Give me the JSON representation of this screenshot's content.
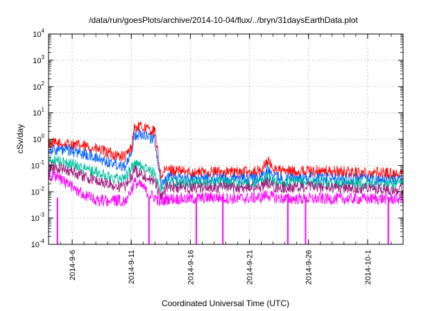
{
  "chart_data": {
    "type": "line",
    "title": "/data/run/goesPlots/archive/2014-10-04/flux/../bryn/31daysEarthData.plot",
    "xlabel": "Coordinated Universal Time (UTC)",
    "ylabel": "cSv/day",
    "x_start": "2014-09-04",
    "x_end": "2014-10-04",
    "y_scale": "log",
    "ylim": [
      0.0001,
      10000
    ],
    "y_ticks": [
      {
        "base": "10",
        "exp": "-4"
      },
      {
        "base": "10",
        "exp": "-3"
      },
      {
        "base": "10",
        "exp": "-2"
      },
      {
        "base": "10",
        "exp": "-1"
      },
      {
        "base": "10",
        "exp": "0"
      },
      {
        "base": "10",
        "exp": "1"
      },
      {
        "base": "10",
        "exp": "2"
      },
      {
        "base": "10",
        "exp": "3"
      },
      {
        "base": "10",
        "exp": "4"
      }
    ],
    "x_ticks": [
      {
        "date": "2014-09-06",
        "label": "2014-9-6"
      },
      {
        "date": "2014-09-11",
        "label": "2014-9-11"
      },
      {
        "date": "2014-09-16",
        "label": "2014-9-16"
      },
      {
        "date": "2014-09-21",
        "label": "2014-9-21"
      },
      {
        "date": "2014-09-26",
        "label": "2014-9-26"
      },
      {
        "date": "2014-10-01",
        "label": "2014-10-1"
      }
    ],
    "grid": true,
    "series": [
      {
        "color": "#ff0000",
        "points": [
          [
            "2014-09-04",
            0.9
          ],
          [
            "2014-09-05",
            0.85
          ],
          [
            "2014-09-06",
            0.8
          ],
          [
            "2014-09-07",
            0.7
          ],
          [
            "2014-09-08",
            0.55
          ],
          [
            "2014-09-09",
            0.4
          ],
          [
            "2014-09-10",
            0.3
          ],
          [
            "2014-09-10T12",
            0.28
          ],
          [
            "2014-09-11",
            0.6
          ],
          [
            "2014-09-11T06",
            3.5
          ],
          [
            "2014-09-12",
            3.8
          ],
          [
            "2014-09-12T12",
            3.0
          ],
          [
            "2014-09-13",
            2.5
          ],
          [
            "2014-09-13T12",
            0.05
          ],
          [
            "2014-09-14",
            0.09
          ],
          [
            "2014-09-16",
            0.07
          ],
          [
            "2014-09-18",
            0.075
          ],
          [
            "2014-09-20",
            0.07
          ],
          [
            "2014-09-22",
            0.08
          ],
          [
            "2014-09-22T12",
            0.2
          ],
          [
            "2014-09-23",
            0.1
          ],
          [
            "2014-09-24",
            0.075
          ],
          [
            "2014-09-26",
            0.08
          ],
          [
            "2014-09-28",
            0.075
          ],
          [
            "2014-09-30",
            0.07
          ],
          [
            "2014-10-02",
            0.07
          ],
          [
            "2014-10-04",
            0.06
          ]
        ]
      },
      {
        "color": "#0060ff",
        "points": [
          [
            "2014-09-04",
            0.55
          ],
          [
            "2014-09-05",
            0.5
          ],
          [
            "2014-09-06",
            0.45
          ],
          [
            "2014-09-07",
            0.35
          ],
          [
            "2014-09-08",
            0.25
          ],
          [
            "2014-09-09",
            0.18
          ],
          [
            "2014-09-10",
            0.14
          ],
          [
            "2014-09-10T12",
            0.13
          ],
          [
            "2014-09-11",
            0.3
          ],
          [
            "2014-09-11T06",
            1.8
          ],
          [
            "2014-09-12",
            2.2
          ],
          [
            "2014-09-12T12",
            1.6
          ],
          [
            "2014-09-13",
            1.2
          ],
          [
            "2014-09-13T12",
            0.025
          ],
          [
            "2014-09-14",
            0.045
          ],
          [
            "2014-09-16",
            0.04
          ],
          [
            "2014-09-18",
            0.042
          ],
          [
            "2014-09-20",
            0.04
          ],
          [
            "2014-09-22",
            0.045
          ],
          [
            "2014-09-22T12",
            0.1
          ],
          [
            "2014-09-23",
            0.05
          ],
          [
            "2014-09-24",
            0.04
          ],
          [
            "2014-09-26",
            0.045
          ],
          [
            "2014-09-28",
            0.042
          ],
          [
            "2014-09-30",
            0.04
          ],
          [
            "2014-10-02",
            0.038
          ],
          [
            "2014-10-04",
            0.035
          ]
        ]
      },
      {
        "color": "#00c0a0",
        "points": [
          [
            "2014-09-04",
            0.2
          ],
          [
            "2014-09-05",
            0.18
          ],
          [
            "2014-09-06",
            0.15
          ],
          [
            "2014-09-07",
            0.1
          ],
          [
            "2014-09-08",
            0.07
          ],
          [
            "2014-09-09",
            0.05
          ],
          [
            "2014-09-10",
            0.04
          ],
          [
            "2014-09-10T12",
            0.045
          ],
          [
            "2014-09-11",
            0.1
          ],
          [
            "2014-09-11T06",
            0.15
          ],
          [
            "2014-09-12",
            0.12
          ],
          [
            "2014-09-12T12",
            0.08
          ],
          [
            "2014-09-13",
            0.06
          ],
          [
            "2014-09-13T12",
            0.015
          ],
          [
            "2014-09-14",
            0.03
          ],
          [
            "2014-09-16",
            0.028
          ],
          [
            "2014-09-18",
            0.03
          ],
          [
            "2014-09-20",
            0.028
          ],
          [
            "2014-09-22",
            0.03
          ],
          [
            "2014-09-22T12",
            0.05
          ],
          [
            "2014-09-23",
            0.032
          ],
          [
            "2014-09-24",
            0.028
          ],
          [
            "2014-09-26",
            0.03
          ],
          [
            "2014-09-28",
            0.028
          ],
          [
            "2014-09-30",
            0.027
          ],
          [
            "2014-10-02",
            0.026
          ],
          [
            "2014-10-04",
            0.025
          ]
        ]
      },
      {
        "color": "#a02080",
        "points": [
          [
            "2014-09-04",
            0.12
          ],
          [
            "2014-09-05",
            0.1
          ],
          [
            "2014-09-06",
            0.08
          ],
          [
            "2014-09-07",
            0.05
          ],
          [
            "2014-09-08",
            0.035
          ],
          [
            "2014-09-09",
            0.025
          ],
          [
            "2014-09-10",
            0.02
          ],
          [
            "2014-09-10T12",
            0.02
          ],
          [
            "2014-09-11",
            0.05
          ],
          [
            "2014-09-11T06",
            0.08
          ],
          [
            "2014-09-12",
            0.06
          ],
          [
            "2014-09-12T12",
            0.04
          ],
          [
            "2014-09-13",
            0.03
          ],
          [
            "2014-09-13T12",
            0.008
          ],
          [
            "2014-09-14",
            0.02
          ],
          [
            "2014-09-16",
            0.018
          ],
          [
            "2014-09-18",
            0.02
          ],
          [
            "2014-09-20",
            0.018
          ],
          [
            "2014-09-22",
            0.02
          ],
          [
            "2014-09-22T12",
            0.03
          ],
          [
            "2014-09-23",
            0.02
          ],
          [
            "2014-09-24",
            0.018
          ],
          [
            "2014-09-26",
            0.02
          ],
          [
            "2014-09-28",
            0.018
          ],
          [
            "2014-09-30",
            0.018
          ],
          [
            "2014-10-02",
            0.017
          ],
          [
            "2014-10-04",
            0.016
          ]
        ]
      },
      {
        "color": "#ff00ff",
        "points": [
          [
            "2014-09-04",
            0.06
          ],
          [
            "2014-09-05",
            0.04
          ],
          [
            "2014-09-06",
            0.02
          ],
          [
            "2014-09-07",
            0.01
          ],
          [
            "2014-09-08",
            0.006
          ],
          [
            "2014-09-09",
            0.006
          ],
          [
            "2014-09-10",
            0.006
          ],
          [
            "2014-09-10T12",
            0.006
          ],
          [
            "2014-09-11",
            0.015
          ],
          [
            "2014-09-11T06",
            0.03
          ],
          [
            "2014-09-12",
            0.02
          ],
          [
            "2014-09-12T12",
            0.01
          ],
          [
            "2014-09-13",
            0.008
          ],
          [
            "2014-09-13T12",
            0.005
          ],
          [
            "2014-09-14",
            0.007
          ],
          [
            "2014-09-16",
            0.007
          ],
          [
            "2014-09-18",
            0.008
          ],
          [
            "2014-09-20",
            0.007
          ],
          [
            "2014-09-22",
            0.008
          ],
          [
            "2014-09-22T12",
            0.01
          ],
          [
            "2014-09-23",
            0.008
          ],
          [
            "2014-09-24",
            0.007
          ],
          [
            "2014-09-26",
            0.007
          ],
          [
            "2014-09-28",
            0.007
          ],
          [
            "2014-09-30",
            0.007
          ],
          [
            "2014-10-02",
            0.007
          ],
          [
            "2014-10-04",
            0.007
          ]
        ]
      }
    ],
    "dropouts": [
      "2014-09-04T18",
      "2014-09-12T12",
      "2014-09-16T12",
      "2014-09-18T18",
      "2014-09-24T06",
      "2014-09-25T18",
      "2014-10-02T18"
    ]
  }
}
